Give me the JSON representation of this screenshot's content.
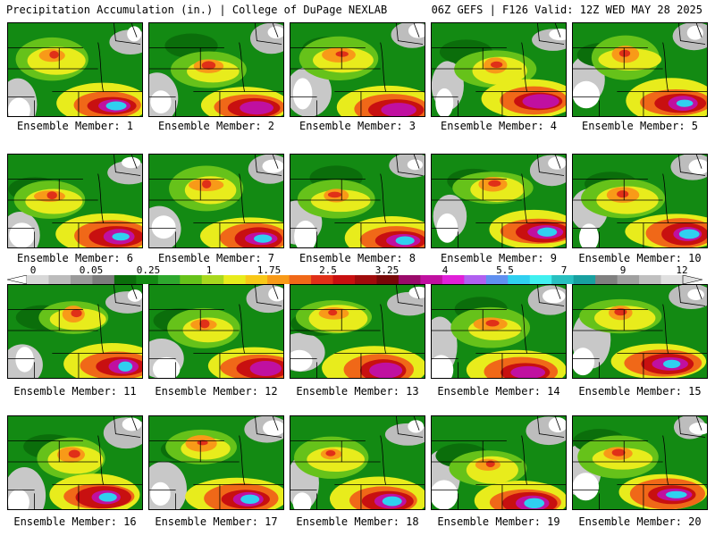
{
  "header": {
    "title": "Precipitation Accumulation (in.) | College of DuPage NEXLAB",
    "run_info": "06Z GEFS | F126 Valid: 12Z WED MAY 28 2025"
  },
  "members": [
    {
      "label": "Ensemble Member: 1"
    },
    {
      "label": "Ensemble Member: 2"
    },
    {
      "label": "Ensemble Member: 3"
    },
    {
      "label": "Ensemble Member: 4"
    },
    {
      "label": "Ensemble Member: 5"
    },
    {
      "label": "Ensemble Member: 6"
    },
    {
      "label": "Ensemble Member: 7"
    },
    {
      "label": "Ensemble Member: 8"
    },
    {
      "label": "Ensemble Member: 9"
    },
    {
      "label": "Ensemble Member: 10"
    },
    {
      "label": "Ensemble Member: 11"
    },
    {
      "label": "Ensemble Member: 12"
    },
    {
      "label": "Ensemble Member: 13"
    },
    {
      "label": "Ensemble Member: 14"
    },
    {
      "label": "Ensemble Member: 15"
    },
    {
      "label": "Ensemble Member: 16"
    },
    {
      "label": "Ensemble Member: 17"
    },
    {
      "label": "Ensemble Member: 18"
    },
    {
      "label": "Ensemble Member: 19"
    },
    {
      "label": "Ensemble Member: 20"
    }
  ],
  "colorbar": {
    "ticks": [
      "0",
      "0.05",
      "0.25",
      "1",
      "1.75",
      "2.5",
      "3.25",
      "4",
      "5.5",
      "7",
      "9",
      "12"
    ],
    "colors": [
      "#d8d8d8",
      "#bcbcbc",
      "#9a9a9a",
      "#7c7c7c",
      "#0b6e0b",
      "#138a13",
      "#2ea82e",
      "#66c21a",
      "#a8d81e",
      "#e8ec1c",
      "#f8c818",
      "#f89a18",
      "#f06818",
      "#e03018",
      "#c81010",
      "#a00c0c",
      "#780808",
      "#9a0a6a",
      "#c010a0",
      "#e020d8",
      "#b060f0",
      "#6090f0",
      "#30d0f0",
      "#40f0f0",
      "#28c0c0",
      "#18a0a0",
      "#808080",
      "#a0a0a0",
      "#c0c0c0",
      "#e0e0e0"
    ]
  }
}
